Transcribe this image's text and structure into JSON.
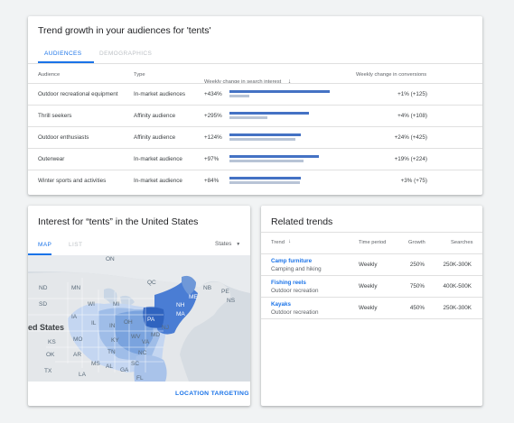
{
  "audiences": {
    "title": "Trend growth in your audiences for 'tents'",
    "tabs": [
      "AUDIENCES",
      "DEMOGRAPHICS"
    ],
    "columns": {
      "audience": "Audience",
      "type": "Type",
      "weekly_search": "Weekly change in search interest",
      "weekly_conversions": "Weekly change in conversions"
    },
    "rows": [
      {
        "audience": "Outdoor recreational equipment",
        "type": "In-market audiences",
        "search": "+434%",
        "search_level": 1.0,
        "secondary_level": 0.2,
        "conversions": "+1% (+125)"
      },
      {
        "audience": "Thrill seekers",
        "type": "Affinity audience",
        "search": "+295%",
        "search_level": 0.79,
        "secondary_level": 0.38,
        "conversions": "+4% (+108)"
      },
      {
        "audience": "Outdoor enthusiasts",
        "type": "Affinity audience",
        "search": "+124%",
        "search_level": 0.71,
        "secondary_level": 0.66,
        "conversions": "+24% (+425)"
      },
      {
        "audience": "Outerwear",
        "type": "In-market audience",
        "search": "+97%",
        "search_level": 0.89,
        "secondary_level": 0.74,
        "conversions": "+19% (+224)"
      },
      {
        "audience": "Winter sports and activities",
        "type": "In-market audience",
        "search": "+84%",
        "search_level": 0.71,
        "secondary_level": 0.7,
        "conversions": "+3% (+75)"
      }
    ],
    "colors": {
      "primary_bar": "#4472c4",
      "secondary_bar": "#b8c4d6",
      "accent": "#1a73e8"
    }
  },
  "interest": {
    "title": "Interest for “tents” in the United States",
    "tabs": [
      "MAP",
      "LIST"
    ],
    "dropdown": "States",
    "map_labels": [
      "ON",
      "NB",
      "ND",
      "MN",
      "QC",
      "PE",
      "NS",
      "SD",
      "WI",
      "MI",
      "NH",
      "ME",
      "MA",
      "IA",
      "OH",
      "PA",
      "NJ",
      "ed States",
      "IL",
      "IN",
      "WV",
      "MD",
      "KS",
      "MO",
      "KY",
      "VA",
      "OK",
      "AR",
      "TN",
      "NC",
      "SC",
      "MS",
      "AL",
      "GA",
      "TX",
      "LA",
      "FL"
    ],
    "footer_link": "LOCATION TARGETING"
  },
  "related": {
    "title": "Related trends",
    "columns": {
      "trend": "Trend",
      "period": "Time period",
      "growth": "Growth",
      "searches": "Searches"
    },
    "rows": [
      {
        "name": "Camp furniture",
        "category": "Camping and hiking",
        "period": "Weekly",
        "growth": "250%",
        "searches": "250K-300K"
      },
      {
        "name": "Fishing reels",
        "category": "Outdoor recreation",
        "period": "Weekly",
        "growth": "750%",
        "searches": "400K-500K"
      },
      {
        "name": "Kayaks",
        "category": "Outdoor recreation",
        "period": "Weekly",
        "growth": "450%",
        "searches": "250K-300K"
      }
    ]
  }
}
